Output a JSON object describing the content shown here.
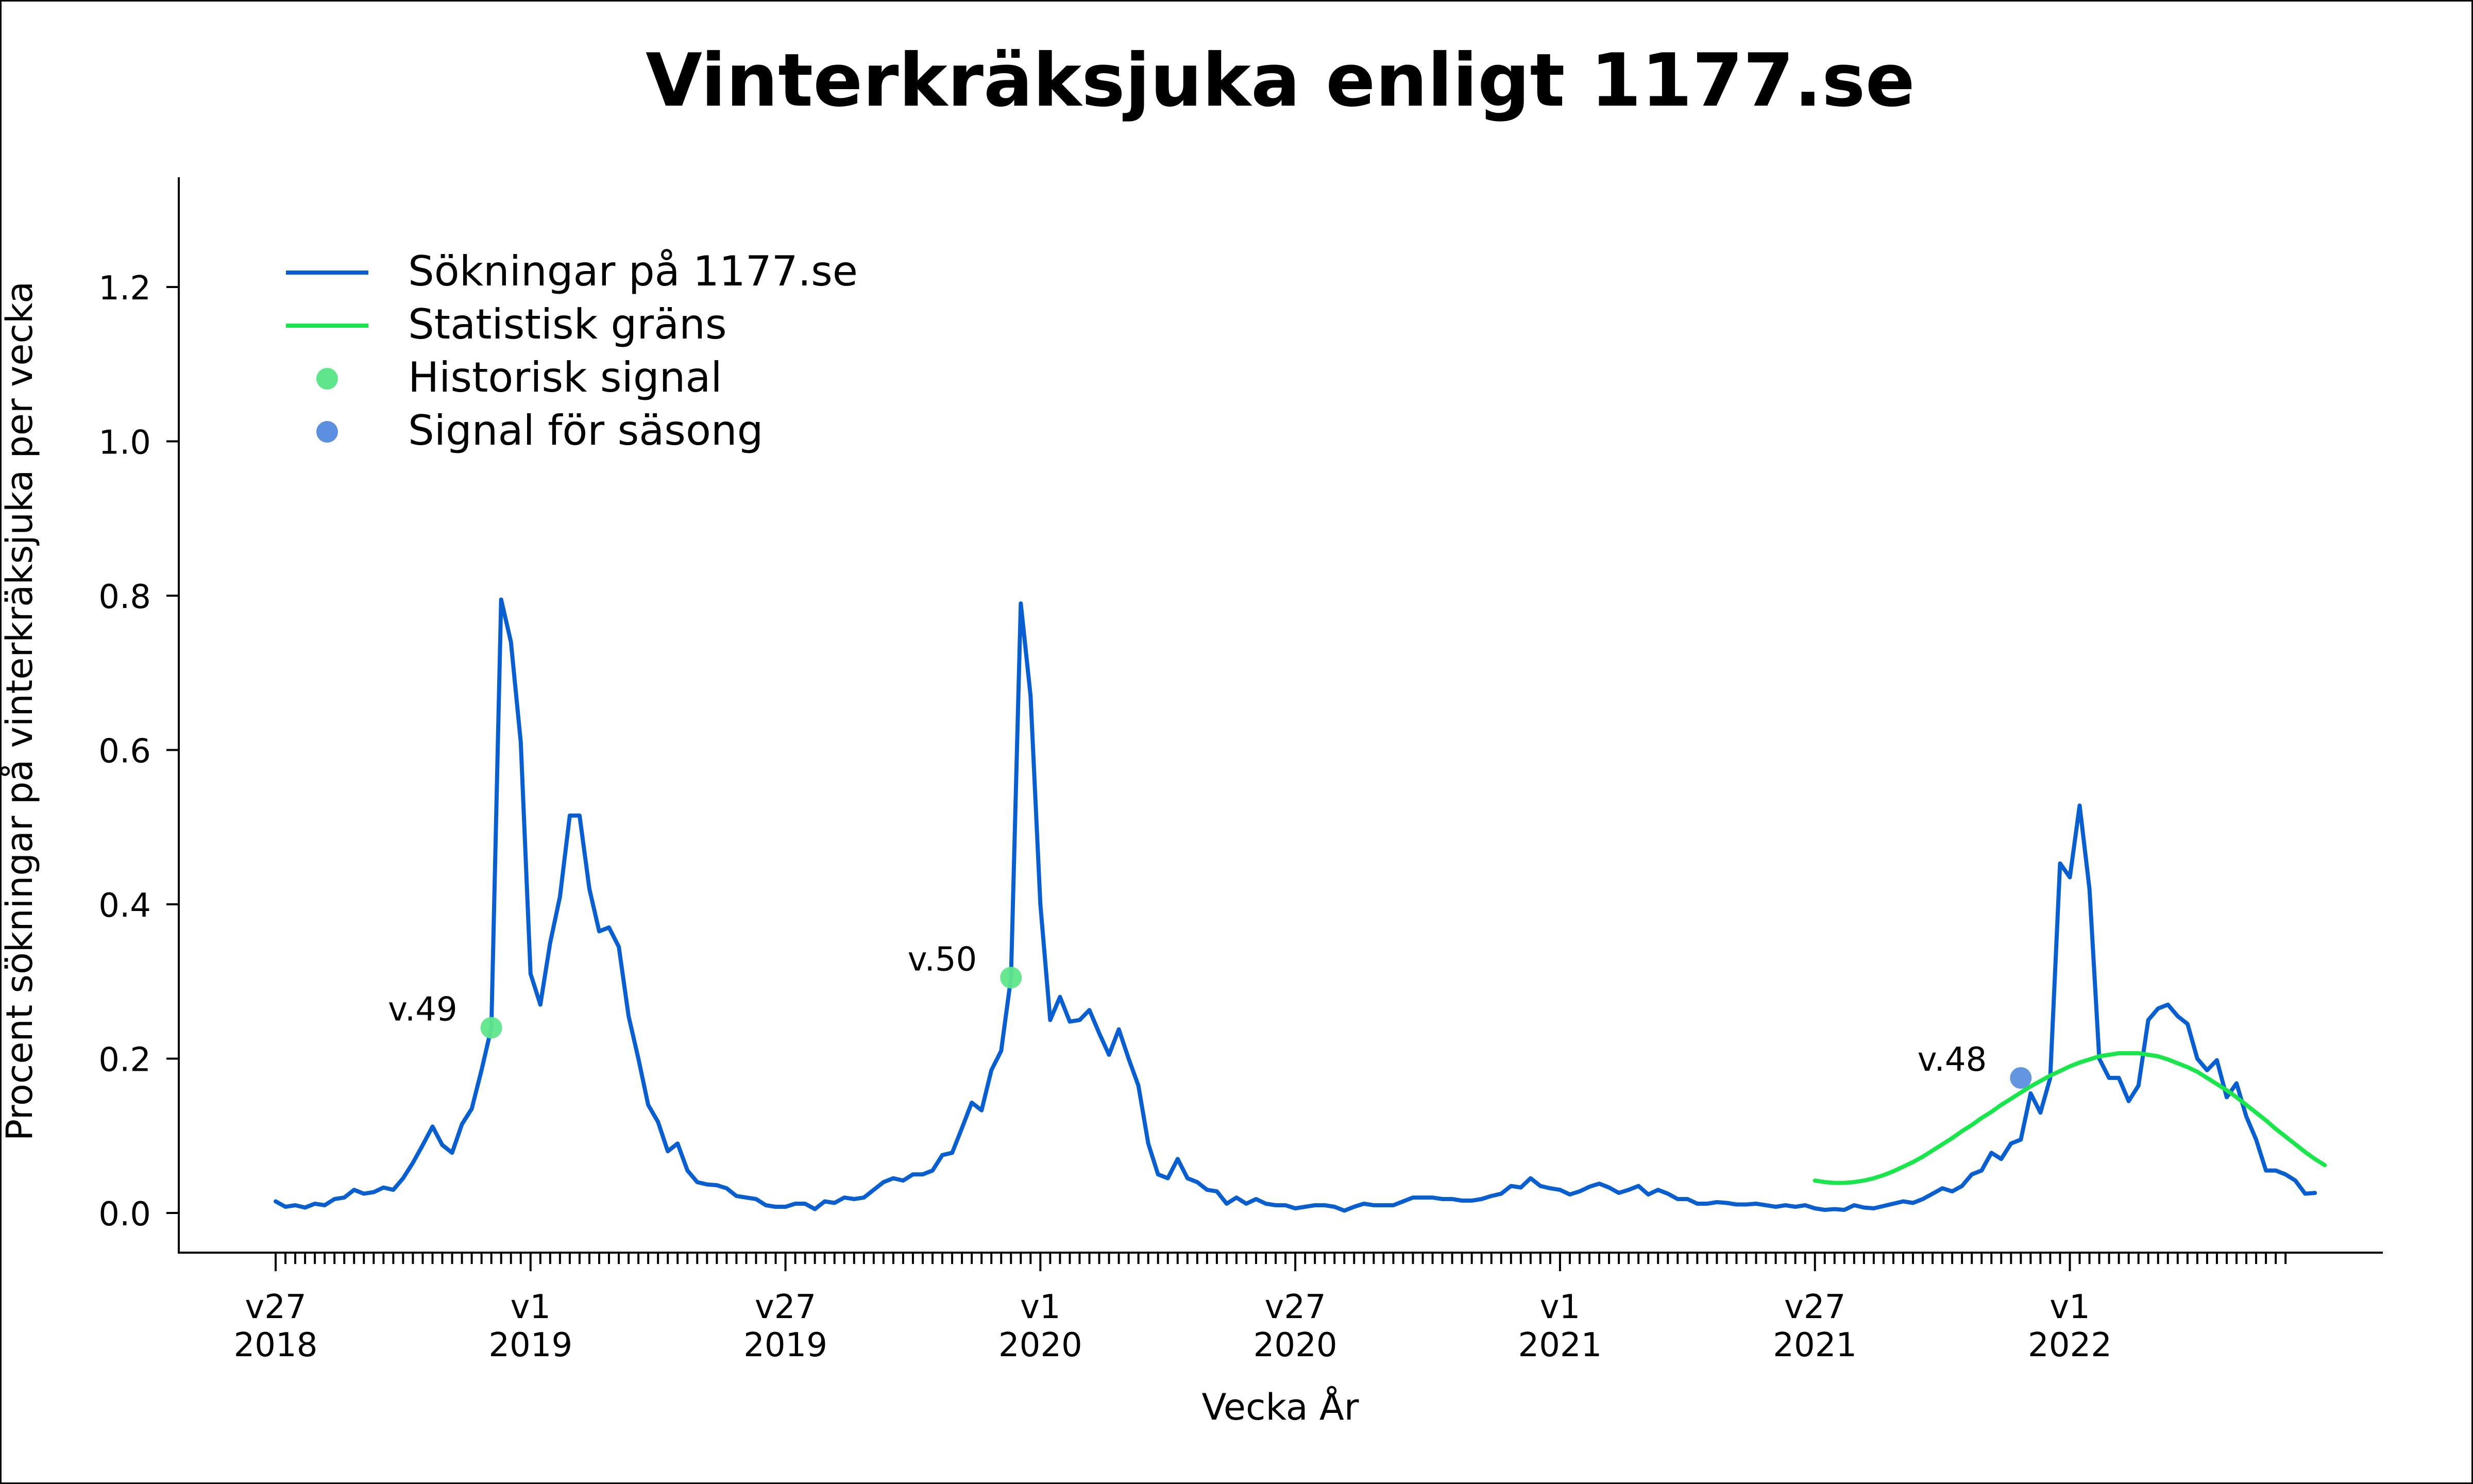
{
  "chart_data": {
    "type": "line",
    "title": "Vinterkräksjuka enligt 1177.se",
    "xlabel": "Vecka År",
    "ylabel": "Procent sökningar på vinterkräksjuka per vecka",
    "ylim": [
      0,
      1.3
    ],
    "xlim": [
      -4,
      266
    ],
    "yticks": [
      {
        "value": 0.0,
        "label": "0.0"
      },
      {
        "value": 0.2,
        "label": "0.2"
      },
      {
        "value": 0.4,
        "label": "0.4"
      },
      {
        "value": 0.6,
        "label": "0.6"
      },
      {
        "value": 0.8,
        "label": "0.8"
      },
      {
        "value": 1.0,
        "label": "1.0"
      },
      {
        "value": 1.2,
        "label": "1.2"
      }
    ],
    "xticks": [
      {
        "x": 0,
        "week": "v27",
        "year": "2018"
      },
      {
        "x": 26,
        "week": "v1",
        "year": "2019"
      },
      {
        "x": 52,
        "week": "v27",
        "year": "2019"
      },
      {
        "x": 78,
        "week": "v1",
        "year": "2020"
      },
      {
        "x": 104,
        "week": "v27",
        "year": "2020"
      },
      {
        "x": 131,
        "week": "v1",
        "year": "2021"
      },
      {
        "x": 157,
        "week": "v27",
        "year": "2021"
      },
      {
        "x": 183,
        "week": "v1",
        "year": "2022"
      }
    ],
    "minor_tick_range": [
      0,
      205
    ],
    "grid": false,
    "legend_position": "top-left",
    "legend": [
      {
        "label": "Sökningar på 1177.se",
        "kind": "line",
        "color": "#0a5fd0"
      },
      {
        "label": "Statistisk gräns",
        "kind": "line",
        "color": "#19e64b"
      },
      {
        "label": "Historisk signal",
        "kind": "marker",
        "color": "#5fe68a"
      },
      {
        "label": "Signal för säsong",
        "kind": "marker",
        "color": "#5b8fdf"
      }
    ],
    "series": [
      {
        "name": "Sökningar på 1177.se",
        "color": "#0a5fd0",
        "x_start": 0,
        "values": [
          0.015,
          0.008,
          0.01,
          0.007,
          0.012,
          0.01,
          0.018,
          0.02,
          0.03,
          0.025,
          0.027,
          0.033,
          0.03,
          0.045,
          0.065,
          0.088,
          0.112,
          0.088,
          0.078,
          0.115,
          0.135,
          0.185,
          0.24,
          0.795,
          0.74,
          0.61,
          0.31,
          0.27,
          0.35,
          0.41,
          0.515,
          0.515,
          0.42,
          0.365,
          0.37,
          0.345,
          0.255,
          0.2,
          0.14,
          0.118,
          0.08,
          0.09,
          0.055,
          0.04,
          0.037,
          0.036,
          0.032,
          0.022,
          0.02,
          0.018,
          0.01,
          0.008,
          0.008,
          0.012,
          0.012,
          0.005,
          0.015,
          0.013,
          0.02,
          0.018,
          0.02,
          0.03,
          0.04,
          0.045,
          0.042,
          0.05,
          0.05,
          0.055,
          0.075,
          0.078,
          0.11,
          0.143,
          0.133,
          0.185,
          0.21,
          0.305,
          0.79,
          0.67,
          0.4,
          0.25,
          0.28,
          0.248,
          0.25,
          0.263,
          0.233,
          0.205,
          0.238,
          0.2,
          0.165,
          0.09,
          0.05,
          0.045,
          0.07,
          0.045,
          0.04,
          0.03,
          0.028,
          0.012,
          0.02,
          0.012,
          0.018,
          0.012,
          0.01,
          0.01,
          0.006,
          0.008,
          0.01,
          0.01,
          0.008,
          0.003,
          0.008,
          0.012,
          0.01,
          0.01,
          0.01,
          0.015,
          0.02,
          0.02,
          0.02,
          0.018,
          0.018,
          0.016,
          0.016,
          0.018,
          0.022,
          0.025,
          0.035,
          0.033,
          0.045,
          0.035,
          0.032,
          0.03,
          0.024,
          0.028,
          0.034,
          0.038,
          0.033,
          0.026,
          0.03,
          0.035,
          0.024,
          0.03,
          0.025,
          0.018,
          0.018,
          0.012,
          0.012,
          0.014,
          0.013,
          0.011,
          0.011,
          0.012,
          0.01,
          0.008,
          0.01,
          0.008,
          0.01,
          0.006,
          0.004,
          0.005,
          0.004,
          0.01,
          0.007,
          0.006,
          0.009,
          0.012,
          0.015,
          0.013,
          0.018,
          0.025,
          0.032,
          0.028,
          0.035,
          0.05,
          0.055,
          0.078,
          0.07,
          0.09,
          0.095,
          0.155,
          0.13,
          0.175,
          0.453,
          0.435,
          0.528,
          0.42,
          0.2,
          0.175,
          0.175,
          0.145,
          0.165,
          0.25,
          0.265,
          0.27,
          0.255,
          0.245,
          0.2,
          0.185,
          0.198,
          0.15,
          0.168,
          0.125,
          0.095,
          0.055,
          0.055,
          0.05,
          0.042,
          0.025,
          0.026
        ]
      },
      {
        "name": "Statistisk gräns",
        "color": "#19e64b",
        "x_start": 157,
        "values": [
          0.042,
          0.04,
          0.039,
          0.039,
          0.04,
          0.042,
          0.045,
          0.049,
          0.054,
          0.06,
          0.066,
          0.073,
          0.081,
          0.089,
          0.097,
          0.106,
          0.114,
          0.123,
          0.131,
          0.14,
          0.148,
          0.156,
          0.164,
          0.171,
          0.178,
          0.184,
          0.19,
          0.195,
          0.199,
          0.203,
          0.205,
          0.207,
          0.207,
          0.207,
          0.205,
          0.203,
          0.199,
          0.194,
          0.189,
          0.183,
          0.175,
          0.167,
          0.159,
          0.15,
          0.14,
          0.13,
          0.12,
          0.109,
          0.099,
          0.089,
          0.079,
          0.07,
          0.062
        ]
      }
    ],
    "signals": [
      {
        "x": 22,
        "y": 0.24,
        "label": "v.49",
        "type": "historisk",
        "color": "#5fe68a"
      },
      {
        "x": 75,
        "y": 0.305,
        "label": "v.50",
        "type": "historisk",
        "color": "#5fe68a"
      },
      {
        "x": 178,
        "y": 0.175,
        "label": "v.48",
        "type": "säsong",
        "color": "#5b8fdf"
      }
    ]
  }
}
